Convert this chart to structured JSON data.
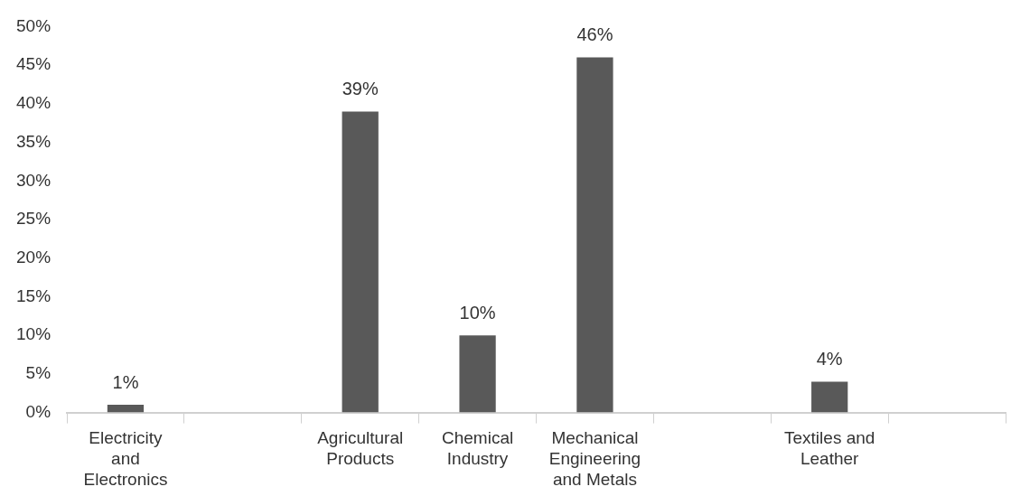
{
  "chart_data": {
    "type": "bar",
    "categories": [
      "Electricity and Electronics",
      null,
      "Agricultural Products",
      "Chemical Industry",
      "Mechanical Engineering and Metals",
      null,
      "Textiles and Leather",
      null
    ],
    "values": [
      1,
      null,
      39,
      10,
      46,
      null,
      4,
      null
    ],
    "value_labels": [
      "1%",
      null,
      "39%",
      "10%",
      "46%",
      null,
      "4%",
      null
    ],
    "color": "#595959",
    "ylim": [
      0,
      50
    ],
    "yticks": [
      {
        "value": 0,
        "label": "0%"
      },
      {
        "value": 5,
        "label": "5%"
      },
      {
        "value": 10,
        "label": "10%"
      },
      {
        "value": 15,
        "label": "15%"
      },
      {
        "value": 20,
        "label": "20%"
      },
      {
        "value": 25,
        "label": "25%"
      },
      {
        "value": 30,
        "label": "30%"
      },
      {
        "value": 35,
        "label": "35%"
      },
      {
        "value": 40,
        "label": "40%"
      },
      {
        "value": 45,
        "label": "45%"
      },
      {
        "value": 50,
        "label": "50%"
      }
    ],
    "grid": false,
    "legend": false
  }
}
